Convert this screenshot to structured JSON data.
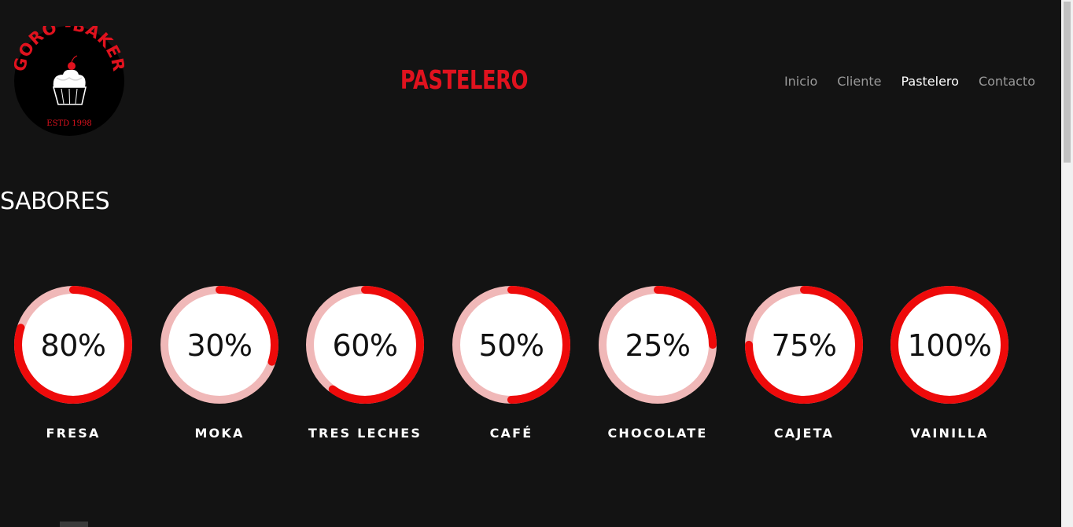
{
  "header": {
    "logo": {
      "top_text": "GORO -BAKER",
      "bottom_text": "ESTD  1998"
    },
    "title": "PASTELERO",
    "nav": [
      {
        "label": "Inicio",
        "active": false
      },
      {
        "label": "Cliente",
        "active": false
      },
      {
        "label": "Pastelero",
        "active": true
      },
      {
        "label": "Contacto",
        "active": false
      }
    ]
  },
  "section": {
    "heading": "SABORES"
  },
  "flavors": [
    {
      "name": "FRESA",
      "percent": 80,
      "display": "80%"
    },
    {
      "name": "MOKA",
      "percent": 30,
      "display": "30%"
    },
    {
      "name": "TRES LECHES",
      "percent": 60,
      "display": "60%"
    },
    {
      "name": "CAFÉ",
      "percent": 50,
      "display": "50%"
    },
    {
      "name": "CHOCOLATE",
      "percent": 25,
      "display": "25%"
    },
    {
      "name": "CAJETA",
      "percent": 75,
      "display": "75%"
    },
    {
      "name": "VAINILLA",
      "percent": 100,
      "display": "100%"
    }
  ],
  "colors": {
    "background": "#131313",
    "accent": "#e0121e",
    "gauge_track": "#f0b8b8",
    "gauge_fill": "#ee0a0a",
    "gauge_center": "#ffffff"
  }
}
